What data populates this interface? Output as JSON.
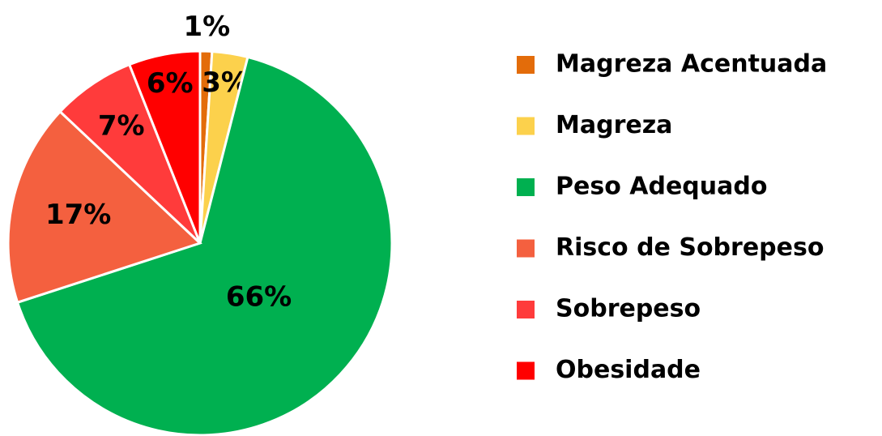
{
  "chart_data": {
    "type": "pie",
    "categories": [
      "Magreza Acentuada",
      "Magreza",
      "Peso Adequado",
      "Risco de Sobrepeso",
      "Sobrepeso",
      "Obesidade"
    ],
    "values": [
      1,
      3,
      66,
      17,
      7,
      6
    ],
    "value_labels": [
      "1%",
      "3%",
      "66%",
      "17%",
      "7%",
      "6%"
    ],
    "colors": [
      "#e36c0a",
      "#fcd14c",
      "#00b050",
      "#f4603f",
      "#ff3b3b",
      "#ff0000"
    ],
    "legend": "right"
  }
}
